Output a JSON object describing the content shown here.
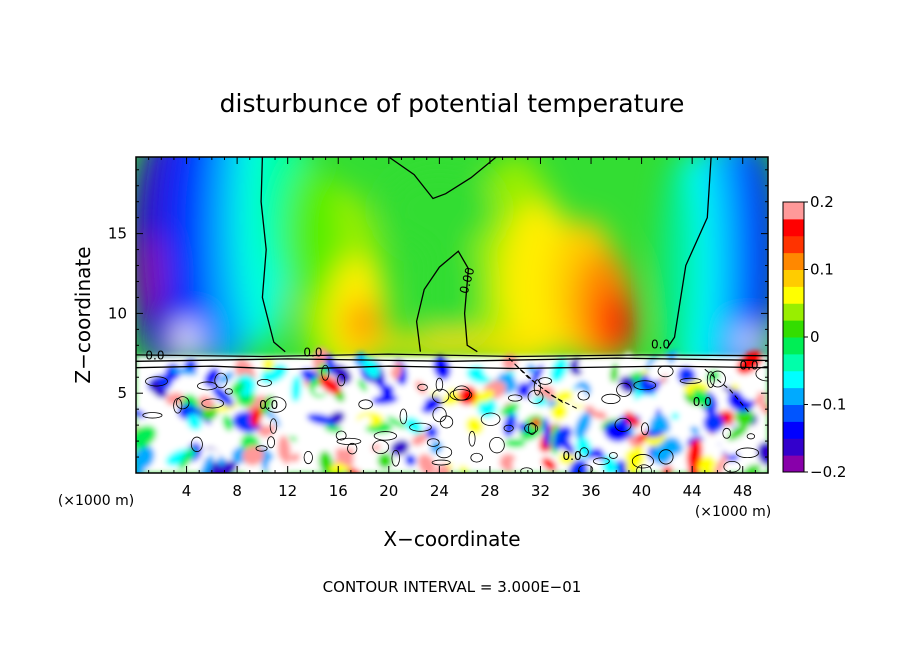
{
  "chart_data": {
    "type": "heatmap",
    "title": "disturbunce of potential temperature",
    "xlabel": "X−coordinate",
    "ylabel": "Z−coordinate",
    "x_unit": "(×1000 m)",
    "y_unit": "(×1000 m)",
    "x_ticks": [
      4,
      8,
      12,
      16,
      20,
      24,
      28,
      32,
      36,
      40,
      44,
      48
    ],
    "y_ticks": [
      5,
      10,
      15
    ],
    "xlim": [
      0,
      50
    ],
    "ylim": [
      0,
      19.8
    ],
    "footnote": "CONTOUR INTERVAL = 3.000E−01",
    "colorbar": {
      "ticks": [
        {
          "value": 0.2,
          "label": "0.2"
        },
        {
          "value": 0.1,
          "label": "0.1"
        },
        {
          "value": 0,
          "label": "0"
        },
        {
          "value": -0.1,
          "label": "−0.1"
        },
        {
          "value": -0.2,
          "label": "−0.2"
        }
      ],
      "range": [
        -0.2,
        0.2
      ],
      "colors": [
        "#8800aa",
        "#3300cc",
        "#0000ff",
        "#0055ff",
        "#00aaff",
        "#00ffff",
        "#00ffaa",
        "#00ee55",
        "#33dd00",
        "#99ee00",
        "#ffff00",
        "#ffcc00",
        "#ff8800",
        "#ff3300",
        "#ff0000",
        "#ff9999"
      ]
    },
    "contour_labels": [
      {
        "x": 26.5,
        "y": 12,
        "text": "0.00"
      },
      {
        "x": 1.5,
        "y": 7.1,
        "text": "0.0"
      },
      {
        "x": 14,
        "y": 7.3,
        "text": "0.0"
      },
      {
        "x": 10.5,
        "y": 4,
        "text": "0.0"
      },
      {
        "x": 41.5,
        "y": 7.8,
        "text": "0.0"
      },
      {
        "x": 34.5,
        "y": 0.8,
        "text": "0.0"
      },
      {
        "x": 44.8,
        "y": 4.2,
        "text": "0.0"
      },
      {
        "x": 48.5,
        "y": 6.5,
        "text": "0.0"
      }
    ]
  }
}
